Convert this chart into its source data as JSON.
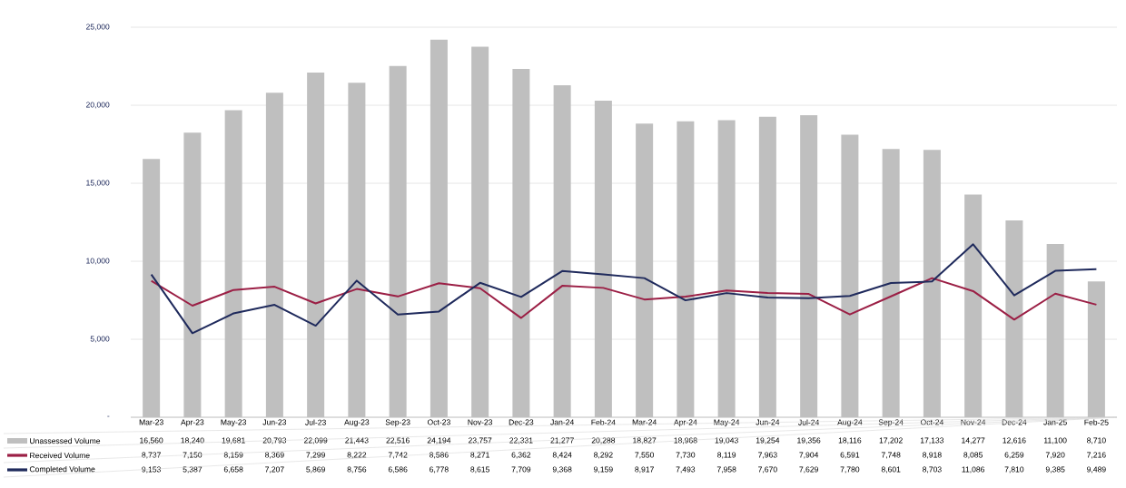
{
  "chart_data": {
    "type": "bar",
    "categories": [
      "Mar-23",
      "Apr-23",
      "May-23",
      "Jun-23",
      "Jul-23",
      "Aug-23",
      "Sep-23",
      "Oct-23",
      "Nov-23",
      "Dec-23",
      "Jan-24",
      "Feb-24",
      "Mar-24",
      "Apr-24",
      "May-24",
      "Jun-24",
      "Jul-24",
      "Aug-24",
      "Sep-24",
      "Oct-24",
      "Nov-24",
      "Dec-24",
      "Jan-25",
      "Feb-25"
    ],
    "series": [
      {
        "name": "Unassessed Volume",
        "color": "#bfbfbf",
        "values": [
          16560,
          18240,
          19681,
          20793,
          22099,
          21443,
          22516,
          24194,
          23757,
          22331,
          21277,
          20288,
          18827,
          18968,
          19043,
          19254,
          19356,
          18116,
          17202,
          17133,
          14277,
          12616,
          11100,
          8710
        ],
        "value_labels": [
          "16,560",
          "18,240",
          "19,681",
          "20,793",
          "22,099",
          "21,443",
          "22,516",
          "24,194",
          "23,757",
          "22,331",
          "21,277",
          "20,288",
          "18,827",
          "18,968",
          "19,043",
          "19,254",
          "19,356",
          "18,116",
          "17,202",
          "17,133",
          "14,277",
          "12,616",
          "11,100",
          "8,710"
        ]
      },
      {
        "name": "Received Volume",
        "type": "line",
        "color": "#9b1f45",
        "values": [
          8737,
          7150,
          8159,
          8369,
          7299,
          8222,
          7742,
          8586,
          8271,
          6362,
          8424,
          8292,
          7550,
          7730,
          8119,
          7963,
          7904,
          6591,
          7748,
          8918,
          8085,
          6259,
          7920,
          7216
        ],
        "value_labels": [
          "8,737",
          "7,150",
          "8,159",
          "8,369",
          "7,299",
          "8,222",
          "7,742",
          "8,586",
          "8,271",
          "6,362",
          "8,424",
          "8,292",
          "7,550",
          "7,730",
          "8,119",
          "7,963",
          "7,904",
          "6,591",
          "7,748",
          "8,918",
          "8,085",
          "6,259",
          "7,920",
          "7,216"
        ]
      },
      {
        "name": "Completed Volume",
        "type": "line",
        "color": "#1f2a5c",
        "values": [
          9153,
          5387,
          6658,
          7207,
          5869,
          8756,
          6586,
          6778,
          8615,
          7709,
          9368,
          9159,
          8917,
          7493,
          7958,
          7670,
          7629,
          7780,
          8601,
          8703,
          11086,
          7810,
          9385,
          9489
        ],
        "value_labels": [
          "9,153",
          "5,387",
          "6,658",
          "7,207",
          "5,869",
          "8,756",
          "6,586",
          "6,778",
          "8,615",
          "7,709",
          "9,368",
          "9,159",
          "8,917",
          "7,493",
          "7,958",
          "7,670",
          "7,629",
          "7,780",
          "8,601",
          "8,703",
          "11,086",
          "7,810",
          "9,385",
          "9,489"
        ]
      }
    ],
    "ylim": [
      0,
      25000
    ],
    "yticks": [
      {
        "value": 0,
        "label": "-"
      },
      {
        "value": 5000,
        "label": "5,000"
      },
      {
        "value": 10000,
        "label": "10,000"
      },
      {
        "value": 15000,
        "label": "15,000"
      },
      {
        "value": 20000,
        "label": "20,000"
      },
      {
        "value": 25000,
        "label": "25,000"
      }
    ],
    "grid": "y",
    "legend": "bottom"
  }
}
